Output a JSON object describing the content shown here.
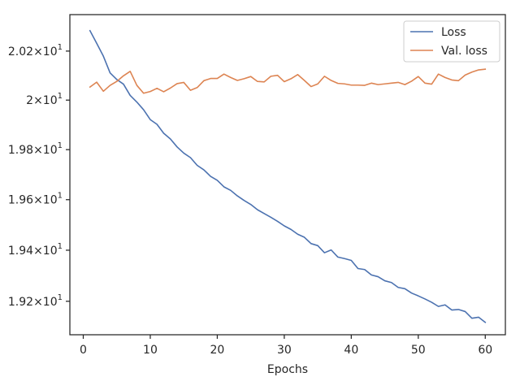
{
  "chart_data": {
    "type": "line",
    "title": "",
    "xlabel": "Epochs",
    "ylabel": "",
    "xlim": [
      -2,
      63
    ],
    "ylim": [
      19.07,
      20.35
    ],
    "grid": false,
    "legend_position": "top-right",
    "x_ticks": [
      0,
      10,
      20,
      30,
      40,
      50,
      60
    ],
    "x_tick_labels": [
      "0",
      "10",
      "20",
      "30",
      "40",
      "50",
      "60"
    ],
    "y_ticks": [
      19.2,
      19.4,
      19.6,
      19.8,
      20.0,
      20.2
    ],
    "y_tick_labels": [
      {
        "mantissa": "1.92",
        "base": "10",
        "exp": "1"
      },
      {
        "mantissa": "1.94",
        "base": "10",
        "exp": "1"
      },
      {
        "mantissa": "1.96",
        "base": "10",
        "exp": "1"
      },
      {
        "mantissa": "1.98",
        "base": "10",
        "exp": "1"
      },
      {
        "mantissa": "2",
        "base": "10",
        "exp": "1"
      },
      {
        "mantissa": "2.02",
        "base": "10",
        "exp": "1"
      }
    ],
    "x": [
      1,
      2,
      3,
      4,
      5,
      6,
      7,
      8,
      9,
      10,
      11,
      12,
      13,
      14,
      15,
      16,
      17,
      18,
      19,
      20,
      21,
      22,
      23,
      24,
      25,
      26,
      27,
      28,
      29,
      30,
      31,
      32,
      33,
      34,
      35,
      36,
      37,
      38,
      39,
      40,
      41,
      42,
      43,
      44,
      45,
      46,
      47,
      48,
      49,
      50,
      51,
      52,
      53,
      54,
      55,
      56,
      57,
      58,
      59,
      60
    ],
    "series": [
      {
        "name": "Loss",
        "color": "#4c72b0",
        "values": [
          20.284,
          20.232,
          20.179,
          20.111,
          20.084,
          20.065,
          20.019,
          19.992,
          19.961,
          19.921,
          19.902,
          19.866,
          19.843,
          19.811,
          19.786,
          19.768,
          19.737,
          19.719,
          19.693,
          19.677,
          19.651,
          19.637,
          19.615,
          19.597,
          19.581,
          19.56,
          19.545,
          19.53,
          19.514,
          19.496,
          19.482,
          19.463,
          19.451,
          19.426,
          19.418,
          19.39,
          19.401,
          19.373,
          19.367,
          19.36,
          19.328,
          19.324,
          19.303,
          19.296,
          19.28,
          19.273,
          19.254,
          19.249,
          19.232,
          19.221,
          19.209,
          19.196,
          19.18,
          19.186,
          19.166,
          19.168,
          19.16,
          19.134,
          19.138,
          19.118
        ]
      },
      {
        "name": "Val. loss",
        "color": "#dd8452",
        "values": [
          20.053,
          20.073,
          20.036,
          20.06,
          20.076,
          20.099,
          20.117,
          20.06,
          20.028,
          20.035,
          20.048,
          20.034,
          20.049,
          20.067,
          20.072,
          20.04,
          20.051,
          20.079,
          20.088,
          20.088,
          20.106,
          20.092,
          20.08,
          20.087,
          20.096,
          20.076,
          20.074,
          20.097,
          20.101,
          20.075,
          20.087,
          20.104,
          20.08,
          20.055,
          20.066,
          20.097,
          20.08,
          20.068,
          20.066,
          20.061,
          20.061,
          20.06,
          20.069,
          20.063,
          20.066,
          20.069,
          20.072,
          20.063,
          20.077,
          20.096,
          20.069,
          20.065,
          20.106,
          20.092,
          20.082,
          20.079,
          20.102,
          20.114,
          20.123,
          20.126
        ]
      }
    ]
  }
}
